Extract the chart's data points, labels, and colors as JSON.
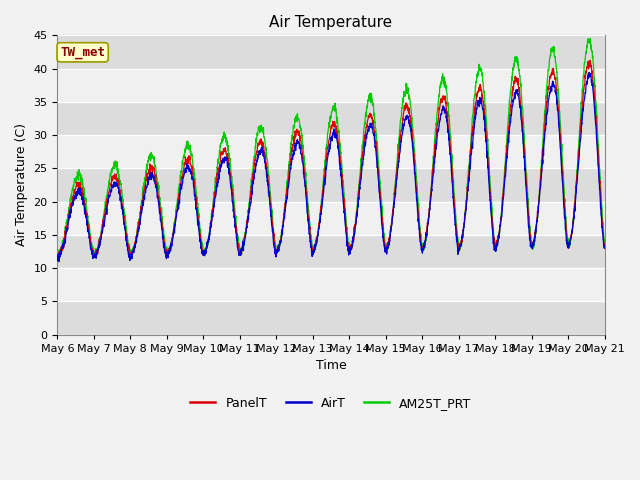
{
  "title": "Air Temperature",
  "xlabel": "Time",
  "ylabel": "Air Temperature (C)",
  "ylim": [
    0,
    45
  ],
  "yticks": [
    0,
    5,
    10,
    15,
    20,
    25,
    30,
    35,
    40,
    45
  ],
  "annotation_text": "TW_met",
  "annotation_color": "#8B0000",
  "annotation_bg": "#FFFFCC",
  "annotation_edge": "#999900",
  "line_colors": {
    "PanelT": "#DD0000",
    "AirT": "#0000CC",
    "AM25T_PRT": "#00CC00"
  },
  "band_colors": [
    "#DCDCDC",
    "#F0F0F0"
  ],
  "title_fontsize": 11,
  "axis_fontsize": 9,
  "tick_fontsize": 8,
  "legend_fontsize": 9
}
